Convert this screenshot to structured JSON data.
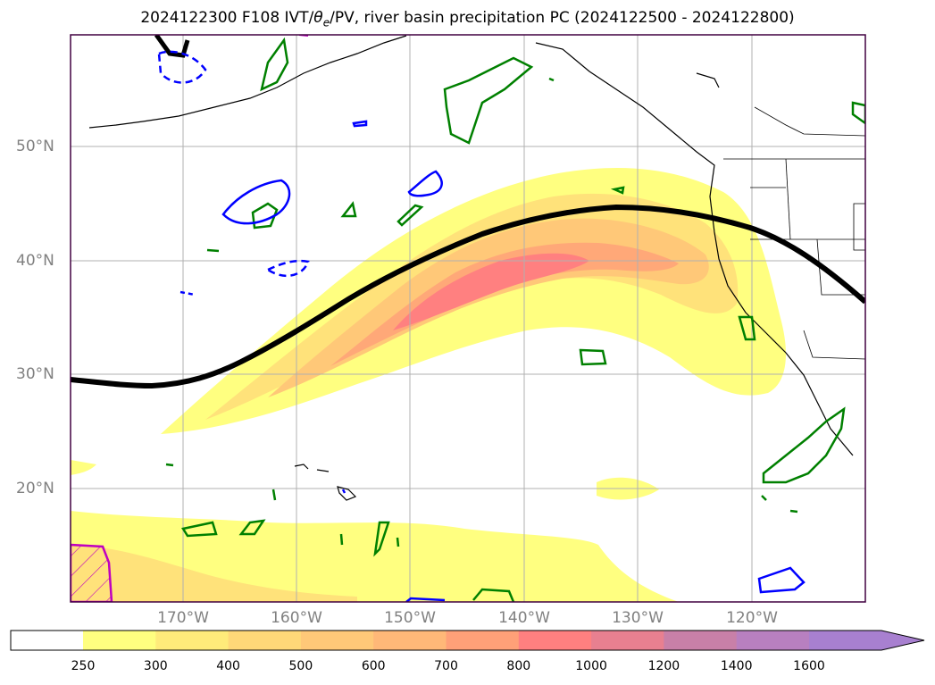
{
  "title": {
    "prefix": "2024122300 F108 IVT/",
    "theta": "θ",
    "subscript": "e",
    "suffix": "/PV, river basin precipitation PC (2024122500 - 2024122800)"
  },
  "map": {
    "region": "North Pacific and western North America",
    "latitude_labels": [
      "50°N",
      "40°N",
      "30°N",
      "20°N"
    ],
    "longitude_labels": [
      "170°W",
      "160°W",
      "150°W",
      "140°W",
      "130°W",
      "120°W"
    ],
    "gridlines": true,
    "colors": {
      "ivt_fill_low": "#ffff80",
      "ivt_fill_mid": "#ffc878",
      "ivt_fill_high": "#ff8080",
      "theta_e_contour": "#000000",
      "precip_contour_positive": "#008000",
      "precip_contour_blue": "#0000ff",
      "pv_contour": "#c000c0",
      "frame": "#400040"
    }
  },
  "colorbar": {
    "labels": [
      "250",
      "300",
      "400",
      "500",
      "600",
      "700",
      "800",
      "1000",
      "1200",
      "1400",
      "1600"
    ],
    "colors": [
      "#ffff80",
      "#ffeb7a",
      "#ffd878",
      "#ffc878",
      "#ffb878",
      "#ffa078",
      "#ff8080",
      "#e88090",
      "#c880a8",
      "#b880c0",
      "#a880d0"
    ],
    "extend": "max"
  }
}
